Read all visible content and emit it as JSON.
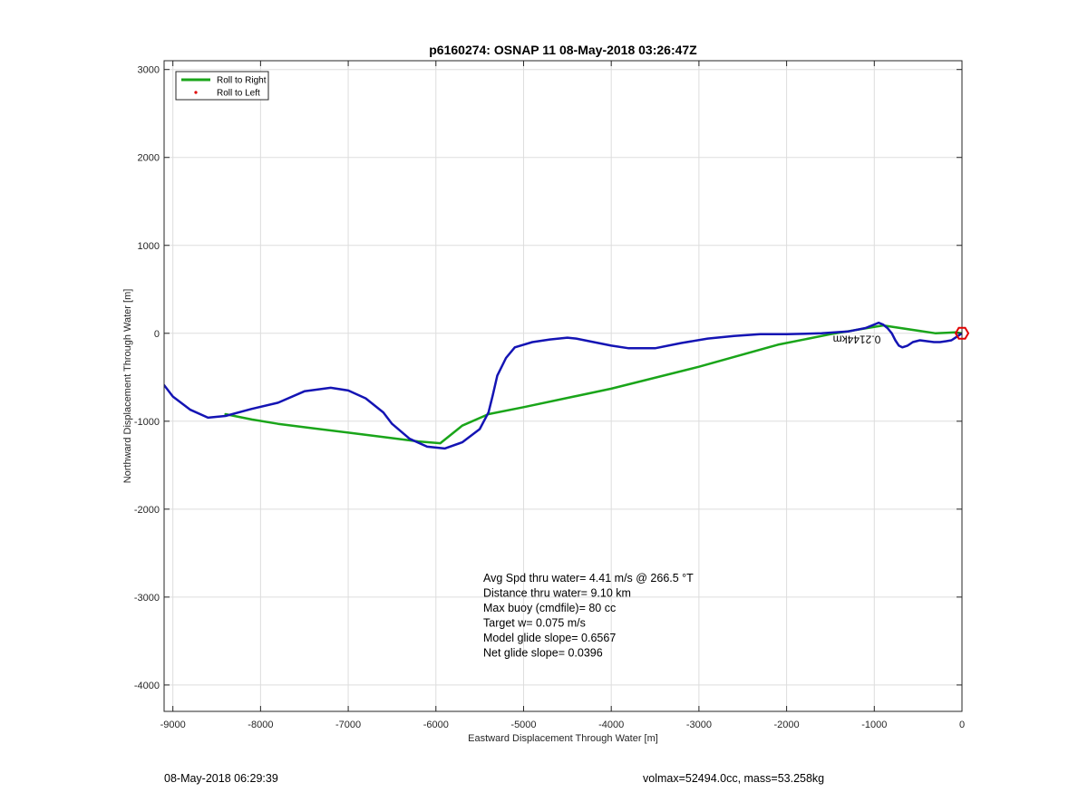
{
  "chart_data": {
    "type": "line",
    "title": "p6160274: OSNAP 11 08-May-2018 03:26:47Z",
    "xlabel": "Eastward Displacement Through Water [m]",
    "ylabel": "Northward Displacement Through Water [m]",
    "xlim": [
      -9100,
      0
    ],
    "ylim": [
      -4300,
      3100
    ],
    "xticks": [
      -9000,
      -8000,
      -7000,
      -6000,
      -5000,
      -4000,
      -3000,
      -2000,
      -1000,
      0
    ],
    "yticks": [
      -4000,
      -3000,
      -2000,
      -1000,
      0,
      1000,
      2000,
      3000
    ],
    "grid": true,
    "legend": {
      "placement": "top-left",
      "entries": [
        {
          "label": "Roll to Right",
          "color": "#1aa51a",
          "style": "line"
        },
        {
          "label": "Roll to Left",
          "color": "#e00000",
          "style": "point"
        }
      ]
    },
    "series": [
      {
        "name": "Roll to Right",
        "color": "#1aa51a",
        "x": [
          0,
          -80,
          -180,
          -300,
          -900,
          -1500,
          -2100,
          -3000,
          -4000,
          -5000,
          -5400,
          -5700,
          -5950,
          -6200,
          -6600,
          -7000,
          -7400,
          -7800,
          -8100,
          -8300,
          -8400
        ],
        "y": [
          0,
          10,
          5,
          0,
          90,
          -10,
          -130,
          -380,
          -630,
          -840,
          -920,
          -1050,
          -1250,
          -1230,
          -1180,
          -1130,
          -1080,
          -1030,
          -980,
          -940,
          -920
        ]
      },
      {
        "name": "track",
        "color": "#1414b4",
        "x": [
          0,
          -60,
          -120,
          -180,
          -250,
          -320,
          -400,
          -480,
          -560,
          -620,
          -680,
          -720,
          -760,
          -800,
          -850,
          -900,
          -950,
          -1000,
          -1100,
          -1300,
          -1600,
          -2000,
          -2300,
          -2600,
          -2900,
          -3200,
          -3500,
          -3800,
          -4000,
          -4200,
          -4400,
          -4500,
          -4700,
          -4900,
          -5100,
          -5200,
          -5300,
          -5350,
          -5400,
          -5500,
          -5700,
          -5900,
          -6100,
          -6300,
          -6500,
          -6600,
          -6800,
          -7000,
          -7200,
          -7500,
          -7800,
          -8100,
          -8400,
          -8600,
          -8800,
          -9000,
          -9100
        ],
        "y": [
          0,
          -40,
          -80,
          -90,
          -100,
          -100,
          -90,
          -80,
          -100,
          -140,
          -160,
          -140,
          -80,
          0,
          60,
          100,
          120,
          100,
          60,
          20,
          0,
          -10,
          -10,
          -30,
          -60,
          -110,
          -170,
          -170,
          -140,
          -100,
          -60,
          -50,
          -70,
          -100,
          -160,
          -280,
          -480,
          -700,
          -900,
          -1090,
          -1240,
          -1310,
          -1290,
          -1200,
          -1030,
          -900,
          -740,
          -650,
          -620,
          -660,
          -790,
          -860,
          -940,
          -960,
          -870,
          -720,
          -590
        ]
      }
    ],
    "markers": [
      {
        "label": "target",
        "x": 0,
        "y": 0,
        "color": "#e00000",
        "shape": "circle"
      }
    ],
    "labels": [
      {
        "text": "0.2144km",
        "x": -1200,
        "y": -30,
        "rotated": true
      }
    ],
    "annotations": [
      "Avg Spd thru water=  4.41 m/s @ 266.5 °T",
      "Distance thru water=  9.10 km",
      "Max buoy (cmdfile)= 80 cc",
      "Target w= 0.075 m/s",
      "Model glide slope= 0.6567",
      "Net glide slope= 0.0396"
    ]
  },
  "footer": {
    "left": "08-May-2018 06:29:39",
    "right": "volmax=52494.0cc, mass=53.258kg"
  },
  "colors": {
    "axis": "#262626",
    "grid": "#dddddd",
    "track": "#1414b4",
    "roll_right": "#1aa51a",
    "roll_left": "#e00000"
  }
}
